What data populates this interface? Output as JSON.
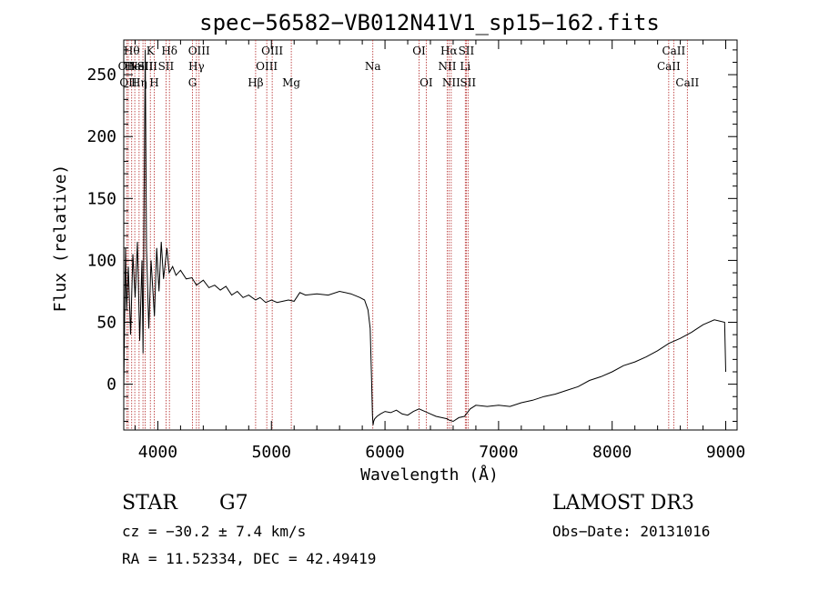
{
  "chart_data": {
    "type": "line",
    "title": "spec−56582−VB012N41V1_sp15−162.fits",
    "xlabel": "Wavelength (Å)",
    "ylabel": "Flux (relative)",
    "xlim": [
      3700,
      9100
    ],
    "ylim": [
      -37,
      278
    ],
    "xticks": [
      4000,
      5000,
      6000,
      7000,
      8000,
      9000
    ],
    "yticks": [
      0,
      50,
      100,
      150,
      200,
      250
    ],
    "series": [
      {
        "name": "flux",
        "x": [
          3700,
          3715,
          3725,
          3740,
          3760,
          3780,
          3800,
          3820,
          3840,
          3860,
          3870,
          3880,
          3889,
          3900,
          3920,
          3940,
          3970,
          3990,
          4010,
          4030,
          4050,
          4080,
          4100,
          4130,
          4160,
          4200,
          4250,
          4300,
          4340,
          4400,
          4450,
          4500,
          4550,
          4600,
          4650,
          4700,
          4750,
          4800,
          4861,
          4900,
          4950,
          5000,
          5050,
          5100,
          5150,
          5200,
          5250,
          5300,
          5400,
          5500,
          5600,
          5700,
          5780,
          5820,
          5850,
          5870,
          5880,
          5890,
          5895,
          5900,
          5910,
          5930,
          5960,
          6000,
          6050,
          6100,
          6150,
          6200,
          6250,
          6300,
          6350,
          6400,
          6450,
          6500,
          6550,
          6563,
          6600,
          6650,
          6700,
          6750,
          6800,
          6900,
          7000,
          7100,
          7200,
          7300,
          7400,
          7500,
          7600,
          7700,
          7800,
          7900,
          8000,
          8100,
          8200,
          8300,
          8400,
          8500,
          8600,
          8700,
          8800,
          8900,
          8990,
          9000
        ],
        "y": [
          -5,
          110,
          60,
          95,
          40,
          105,
          70,
          115,
          35,
          100,
          25,
          165,
          270,
          110,
          45,
          100,
          55,
          110,
          75,
          115,
          85,
          110,
          90,
          95,
          88,
          92,
          85,
          86,
          80,
          84,
          78,
          80,
          76,
          79,
          72,
          75,
          70,
          72,
          68,
          70,
          66,
          68,
          66,
          67,
          68,
          67,
          74,
          72,
          73,
          72,
          75,
          73,
          70,
          68,
          60,
          45,
          10,
          -25,
          -33,
          -30,
          -28,
          -26,
          -24,
          -22,
          -23,
          -21,
          -24,
          -25,
          -22,
          -20,
          -22,
          -24,
          -26,
          -27,
          -28,
          -29,
          -30,
          -27,
          -26,
          -20,
          -17,
          -18,
          -17,
          -18,
          -15,
          -13,
          -10,
          -8,
          -5,
          -2,
          3,
          6,
          10,
          15,
          18,
          22,
          27,
          33,
          37,
          42,
          48,
          52,
          50,
          10
        ]
      }
    ],
    "lines": [
      {
        "wl": 3726,
        "label": "OII",
        "row": 1
      },
      {
        "wl": 3740,
        "label": "OII",
        "row": 2
      },
      {
        "wl": 3770,
        "label": "Hθ",
        "row": 0
      },
      {
        "wl": 3797,
        "label": "HeI",
        "row": 1
      },
      {
        "wl": 3835,
        "label": "Hη",
        "row": 2
      },
      {
        "wl": 3869,
        "label": "NeIII",
        "row": 1
      },
      {
        "wl": 3889,
        "label": "SII",
        "row": 1
      },
      {
        "wl": 3934,
        "label": "K",
        "row": 0
      },
      {
        "wl": 3968,
        "label": "H",
        "row": 2
      },
      {
        "wl": 4072,
        "label": "SII",
        "row": 1
      },
      {
        "wl": 4102,
        "label": "Hδ",
        "row": 0
      },
      {
        "wl": 4305,
        "label": "G",
        "row": 2
      },
      {
        "wl": 4340,
        "label": "Hγ",
        "row": 1
      },
      {
        "wl": 4363,
        "label": "OIII",
        "row": 0
      },
      {
        "wl": 4861,
        "label": "Hβ",
        "row": 2
      },
      {
        "wl": 4959,
        "label": "OIII",
        "row": 1
      },
      {
        "wl": 5007,
        "label": "OIII",
        "row": 0
      },
      {
        "wl": 5175,
        "label": "Mg",
        "row": 2
      },
      {
        "wl": 5893,
        "label": "Na",
        "row": 1
      },
      {
        "wl": 6300,
        "label": "OI",
        "row": 0
      },
      {
        "wl": 6363,
        "label": "OI",
        "row": 2
      },
      {
        "wl": 6548,
        "label": "NII",
        "row": 1
      },
      {
        "wl": 6563,
        "label": "Hα",
        "row": 0
      },
      {
        "wl": 6583,
        "label": "NII",
        "row": 2
      },
      {
        "wl": 6707,
        "label": "Li",
        "row": 1
      },
      {
        "wl": 6716,
        "label": "SII",
        "row": 0
      },
      {
        "wl": 6731,
        "label": "SII",
        "row": 2
      },
      {
        "wl": 8498,
        "label": "CaII",
        "row": 1
      },
      {
        "wl": 8542,
        "label": "CaII",
        "row": 0
      },
      {
        "wl": 8662,
        "label": "CaII",
        "row": 2
      }
    ]
  },
  "info": {
    "class": "STAR",
    "subclass": "G7",
    "survey": "LAMOST DR3",
    "cz": "cz = −30.2 ± 7.4 km/s",
    "obs_date": "Obs−Date: 20131016",
    "coords": "RA =  11.52334, DEC =  42.49419"
  },
  "colors": {
    "spectrum": "#000000",
    "line_marker": "#b22222",
    "axis": "#000000"
  }
}
